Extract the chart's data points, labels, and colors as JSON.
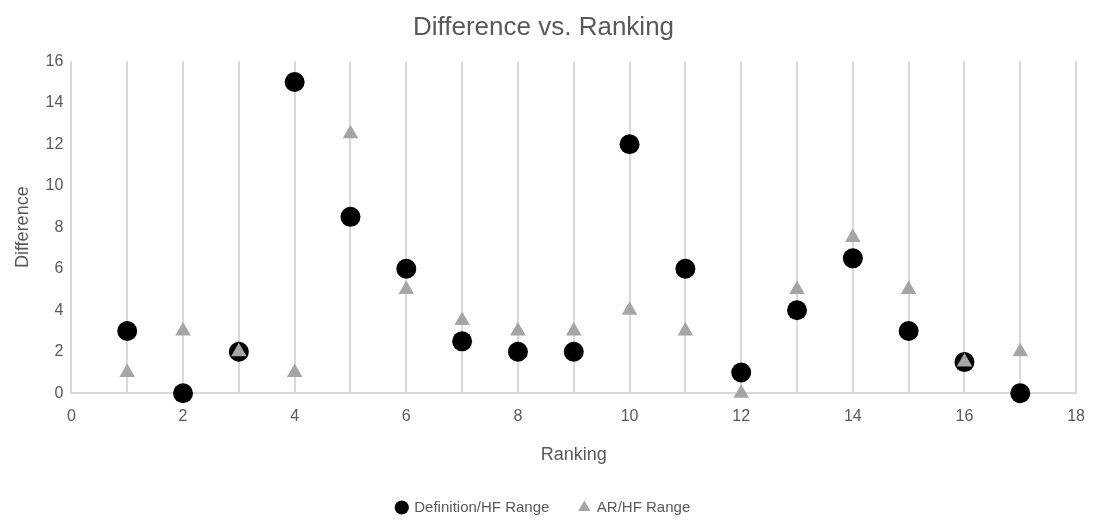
{
  "chart_data": {
    "type": "scatter",
    "title": "Difference vs. Ranking",
    "xlabel": "Ranking",
    "ylabel": "Difference",
    "xlim": [
      0,
      18
    ],
    "xticks": [
      0,
      {
        "value": 1,
        "label": null
      },
      2,
      {
        "value": 3,
        "label": null
      },
      4,
      {
        "value": 5,
        "label": null
      },
      6,
      {
        "value": 7,
        "label": null
      },
      8,
      {
        "value": 9,
        "label": null
      },
      10,
      {
        "value": 11,
        "label": null
      },
      12,
      {
        "value": 13,
        "label": null
      },
      14,
      {
        "value": 15,
        "label": null
      },
      16,
      {
        "value": 17,
        "label": null
      },
      18
    ],
    "ylim": [
      0,
      16
    ],
    "yticks": [
      0,
      2,
      4,
      6,
      8,
      10,
      12,
      14,
      16
    ],
    "grid": "x",
    "legend": "bottom",
    "x": [
      1,
      2,
      3,
      4,
      5,
      6,
      7,
      8,
      9,
      10,
      11,
      12,
      13,
      14,
      15,
      16,
      17
    ],
    "series": [
      {
        "name": "Definition/HF Range",
        "color": "#000000",
        "marker": "circle",
        "values": [
          3,
          0,
          2,
          15,
          8.5,
          6,
          2.5,
          2,
          2,
          12,
          6,
          1,
          4,
          6.5,
          3,
          1.5,
          0
        ]
      },
      {
        "name": "AR/HF Range",
        "color": "#a5a5a5",
        "marker": "triangle",
        "values": [
          1,
          3,
          2,
          1,
          12.5,
          5,
          3.5,
          3,
          3,
          4,
          3,
          0,
          5,
          7.5,
          5,
          1.5,
          2
        ]
      }
    ]
  }
}
